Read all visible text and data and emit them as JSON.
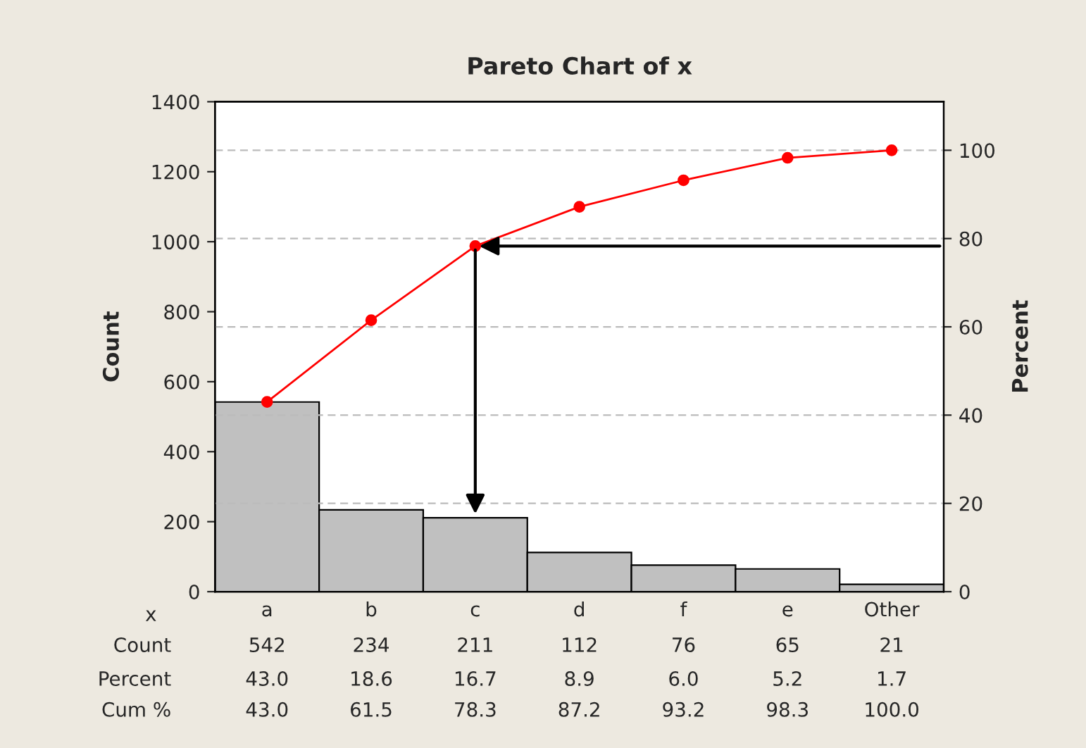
{
  "chart_data": {
    "type": "bar",
    "title": "Pareto Chart of x",
    "xlabel": "x",
    "ylabel": "Count",
    "y2label": "Percent",
    "categories": [
      "a",
      "b",
      "c",
      "d",
      "f",
      "e",
      "Other"
    ],
    "series": [
      {
        "color": "#c0c0c0",
        "values": [
          542,
          234,
          211,
          112,
          76,
          65,
          21
        ],
        "value_labels": [
          "542",
          "234",
          "211",
          "112",
          "76",
          "65",
          "21"
        ]
      },
      {
        "type": "line",
        "axis": "y2",
        "color": "#ff0000",
        "values": [
          43.0,
          61.5,
          78.3,
          87.2,
          93.2,
          98.3,
          100.0
        ],
        "value_labels": [
          "43.0",
          "61.5",
          "78.3",
          "87.2",
          "93.2",
          "98.3",
          "100.0"
        ]
      }
    ],
    "ylim": [
      0,
      1400
    ],
    "yticks": [
      0,
      200,
      400,
      600,
      800,
      1000,
      1200,
      1400
    ],
    "y2lim": [
      0,
      111
    ],
    "y2ticks": [
      0,
      20,
      40,
      60,
      80,
      100
    ],
    "grid": "y2",
    "marker": "circle",
    "annotations": [
      "Count",
      "Percent",
      "Cum %",
      "43.0",
      "18.6",
      "16.7",
      "8.9",
      "6.0",
      "5.2",
      "1.7"
    ]
  }
}
